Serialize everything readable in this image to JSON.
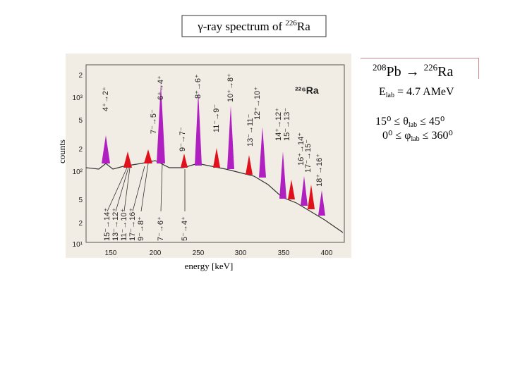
{
  "title": {
    "prefix": "γ-ray spectrum of ",
    "mass": "226",
    "element": "Ra"
  },
  "reaction": {
    "projectile_mass": "208",
    "projectile": "Pb",
    "arrow": "→",
    "product_mass": "226",
    "product": "Ra"
  },
  "energy": {
    "symbol": "E",
    "subscript": "lab",
    "value": " = 4.7 AMeV"
  },
  "angles": {
    "theta": "15⁰ ≤ θ",
    "theta_sub": "lab",
    "theta_end": " ≤ 45⁰",
    "phi": "0⁰ ≤ φ",
    "phi_sub": "lab",
    "phi_end": " ≤ 360⁰"
  },
  "axis_labels": {
    "y": "counts",
    "x": "energy [keV]"
  },
  "figure": {
    "y_ticks": [
      "2",
      "10³",
      "5",
      "2",
      "10²",
      "5",
      "2",
      "10¹"
    ],
    "x_ticks": [
      "150",
      "200",
      "250",
      "300",
      "350",
      "400"
    ],
    "nucleus": "²²⁶Ra",
    "transitions_top": [
      "4⁺→2⁺",
      "6⁺→4⁺",
      "8⁺→6⁺",
      "10⁺→8⁺",
      "7⁻→5⁻",
      "9⁻→7⁻",
      "11⁻→9⁻",
      "12⁺→10⁺",
      "13⁻→11⁻",
      "14⁺→12⁺",
      "15⁻→13⁻",
      "16⁺→14⁺",
      "17⁻→15⁻",
      "18⁺→16⁺"
    ],
    "transitions_bottom": [
      "15⁻→14⁺",
      "13⁻→12⁺",
      "11⁻→10⁺",
      "17⁻→16⁺",
      "9⁻→8⁺",
      "7⁻→6⁺",
      "5⁻→4⁺"
    ]
  }
}
